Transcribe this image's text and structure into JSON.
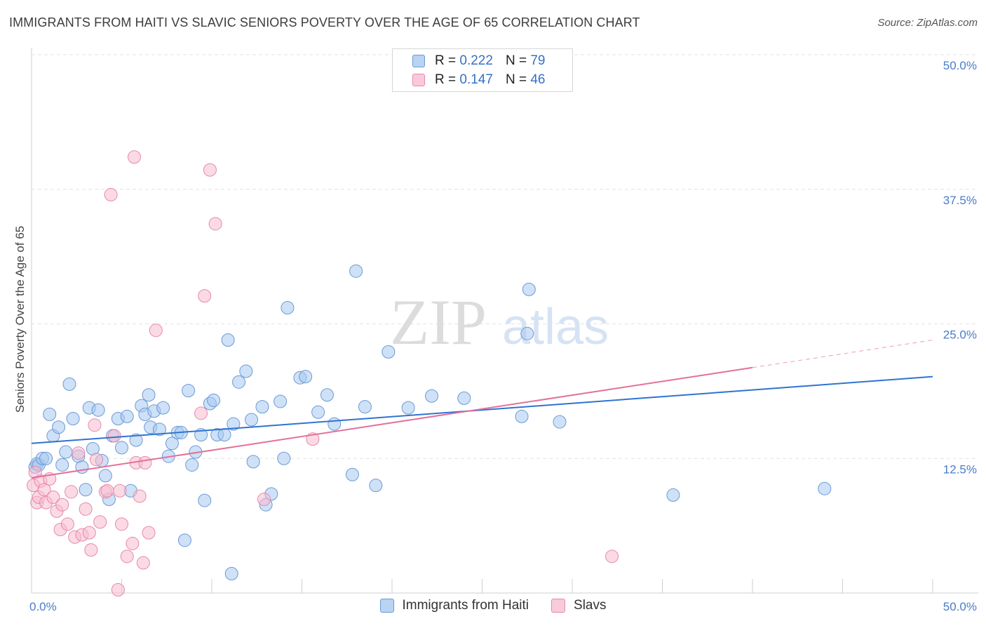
{
  "title": "IMMIGRANTS FROM HAITI VS SLAVIC SENIORS POVERTY OVER THE AGE OF 65 CORRELATION CHART",
  "source": "Source: ZipAtlas.com",
  "watermark": {
    "zip": "ZIP",
    "atlas": "atlas"
  },
  "legend": {
    "rows": [
      {
        "r_label": "R =",
        "r_value": "0.222",
        "n_label": "N =",
        "n_value": "79"
      },
      {
        "r_label": "R =",
        "r_value": "0.147",
        "n_label": "N =",
        "n_value": "46"
      }
    ]
  },
  "colors": {
    "blue_fill": "#a8c8f0",
    "blue_stroke": "#6a9ad6",
    "blue_line": "#2f74d0",
    "pink_fill": "#f7bcd0",
    "pink_stroke": "#e58aaa",
    "pink_line": "#e4709a",
    "tick_text": "#4a7cc9",
    "grid": "#e3e3e3"
  },
  "chart_data": {
    "type": "scatter",
    "title": "IMMIGRANTS FROM HAITI VS SLAVIC SENIORS POVERTY OVER THE AGE OF 65 CORRELATION CHART",
    "xlabel": "",
    "ylabel": "Seniors Poverty Over the Age of 65",
    "xlim": [
      0,
      50
    ],
    "ylim": [
      0,
      50
    ],
    "x_tick_labels": [
      "0.0%",
      "50.0%"
    ],
    "y_ticks": [
      12.5,
      25.0,
      37.5,
      50.0
    ],
    "y_tick_labels": [
      "12.5%",
      "25.0%",
      "37.5%",
      "50.0%"
    ],
    "grid": "horizontal dashed",
    "legend_position": "top-center",
    "series": [
      {
        "name": "Immigrants from Haiti",
        "color": "#a8c8f0",
        "r": 0.222,
        "n": 79,
        "trend": {
          "x": [
            0,
            50
          ],
          "y": [
            13.9,
            20.1
          ],
          "dashed_from_x": null
        },
        "points": [
          [
            0.2,
            11.7
          ],
          [
            0.3,
            12.0
          ],
          [
            0.4,
            11.9
          ],
          [
            0.6,
            12.5
          ],
          [
            0.8,
            12.5
          ],
          [
            1.0,
            16.6
          ],
          [
            1.2,
            14.6
          ],
          [
            1.5,
            15.4
          ],
          [
            1.7,
            11.9
          ],
          [
            1.9,
            13.1
          ],
          [
            2.1,
            19.4
          ],
          [
            2.3,
            16.2
          ],
          [
            2.6,
            12.7
          ],
          [
            2.8,
            11.7
          ],
          [
            3.0,
            9.6
          ],
          [
            3.2,
            17.2
          ],
          [
            3.4,
            13.4
          ],
          [
            3.7,
            17.0
          ],
          [
            3.9,
            12.3
          ],
          [
            4.1,
            10.9
          ],
          [
            4.3,
            8.7
          ],
          [
            4.5,
            14.6
          ],
          [
            4.8,
            16.2
          ],
          [
            5.0,
            13.5
          ],
          [
            5.3,
            16.4
          ],
          [
            5.5,
            9.5
          ],
          [
            5.8,
            14.2
          ],
          [
            6.1,
            17.4
          ],
          [
            6.3,
            16.6
          ],
          [
            6.5,
            18.4
          ],
          [
            6.6,
            15.4
          ],
          [
            6.8,
            16.9
          ],
          [
            7.1,
            15.2
          ],
          [
            7.3,
            17.2
          ],
          [
            7.6,
            12.7
          ],
          [
            7.8,
            13.9
          ],
          [
            8.1,
            14.9
          ],
          [
            8.3,
            14.9
          ],
          [
            8.5,
            4.9
          ],
          [
            8.7,
            18.8
          ],
          [
            8.9,
            11.9
          ],
          [
            9.1,
            13.1
          ],
          [
            9.4,
            14.7
          ],
          [
            9.6,
            8.6
          ],
          [
            9.9,
            17.6
          ],
          [
            10.1,
            17.9
          ],
          [
            10.3,
            14.7
          ],
          [
            10.7,
            14.7
          ],
          [
            10.9,
            23.5
          ],
          [
            11.2,
            15.7
          ],
          [
            11.1,
            1.8
          ],
          [
            11.5,
            19.6
          ],
          [
            11.9,
            20.6
          ],
          [
            12.2,
            16.1
          ],
          [
            12.3,
            12.2
          ],
          [
            12.8,
            17.3
          ],
          [
            13.0,
            8.2
          ],
          [
            13.3,
            9.2
          ],
          [
            13.8,
            17.8
          ],
          [
            14.0,
            12.5
          ],
          [
            14.2,
            26.5
          ],
          [
            14.9,
            20.0
          ],
          [
            15.2,
            20.1
          ],
          [
            15.9,
            16.8
          ],
          [
            16.4,
            18.4
          ],
          [
            16.8,
            15.7
          ],
          [
            17.8,
            11.0
          ],
          [
            18.0,
            29.9
          ],
          [
            18.5,
            17.3
          ],
          [
            19.1,
            10.0
          ],
          [
            19.8,
            22.4
          ],
          [
            20.9,
            17.2
          ],
          [
            22.2,
            18.3
          ],
          [
            24.0,
            18.1
          ],
          [
            27.2,
            16.4
          ],
          [
            27.5,
            24.1
          ],
          [
            27.6,
            28.2
          ],
          [
            29.3,
            15.9
          ],
          [
            35.6,
            9.1
          ],
          [
            44.0,
            9.7
          ]
        ]
      },
      {
        "name": "Slavs",
        "color": "#f7bcd0",
        "r": 0.147,
        "n": 46,
        "trend": {
          "x": [
            0,
            50
          ],
          "y": [
            10.7,
            23.5
          ],
          "dashed_from_x": 40
        },
        "points": [
          [
            0.1,
            10.0
          ],
          [
            0.2,
            11.2
          ],
          [
            0.3,
            8.4
          ],
          [
            0.4,
            8.9
          ],
          [
            0.5,
            10.4
          ],
          [
            0.7,
            9.6
          ],
          [
            0.8,
            8.4
          ],
          [
            1.0,
            10.6
          ],
          [
            1.2,
            8.9
          ],
          [
            1.4,
            7.6
          ],
          [
            1.6,
            5.9
          ],
          [
            1.7,
            8.2
          ],
          [
            2.0,
            6.4
          ],
          [
            2.2,
            9.4
          ],
          [
            2.4,
            5.2
          ],
          [
            2.6,
            13.0
          ],
          [
            2.8,
            5.4
          ],
          [
            3.0,
            7.8
          ],
          [
            3.2,
            5.6
          ],
          [
            3.3,
            4.0
          ],
          [
            3.5,
            15.6
          ],
          [
            3.6,
            12.4
          ],
          [
            3.8,
            6.6
          ],
          [
            4.1,
            9.4
          ],
          [
            4.2,
            9.5
          ],
          [
            4.4,
            37.0
          ],
          [
            4.6,
            14.6
          ],
          [
            4.8,
            0.3
          ],
          [
            4.9,
            9.5
          ],
          [
            5.0,
            6.4
          ],
          [
            5.3,
            3.4
          ],
          [
            5.6,
            4.6
          ],
          [
            5.7,
            40.5
          ],
          [
            5.8,
            12.1
          ],
          [
            6.0,
            9.0
          ],
          [
            6.2,
            2.8
          ],
          [
            6.3,
            12.1
          ],
          [
            6.5,
            5.6
          ],
          [
            6.9,
            24.4
          ],
          [
            9.4,
            16.7
          ],
          [
            9.6,
            27.6
          ],
          [
            9.9,
            39.3
          ],
          [
            10.2,
            34.3
          ],
          [
            12.9,
            8.7
          ],
          [
            15.6,
            14.3
          ],
          [
            32.2,
            3.4
          ]
        ]
      }
    ]
  },
  "bottom_legend": [
    {
      "label": "Immigrants from Haiti"
    },
    {
      "label": "Slavs"
    }
  ]
}
